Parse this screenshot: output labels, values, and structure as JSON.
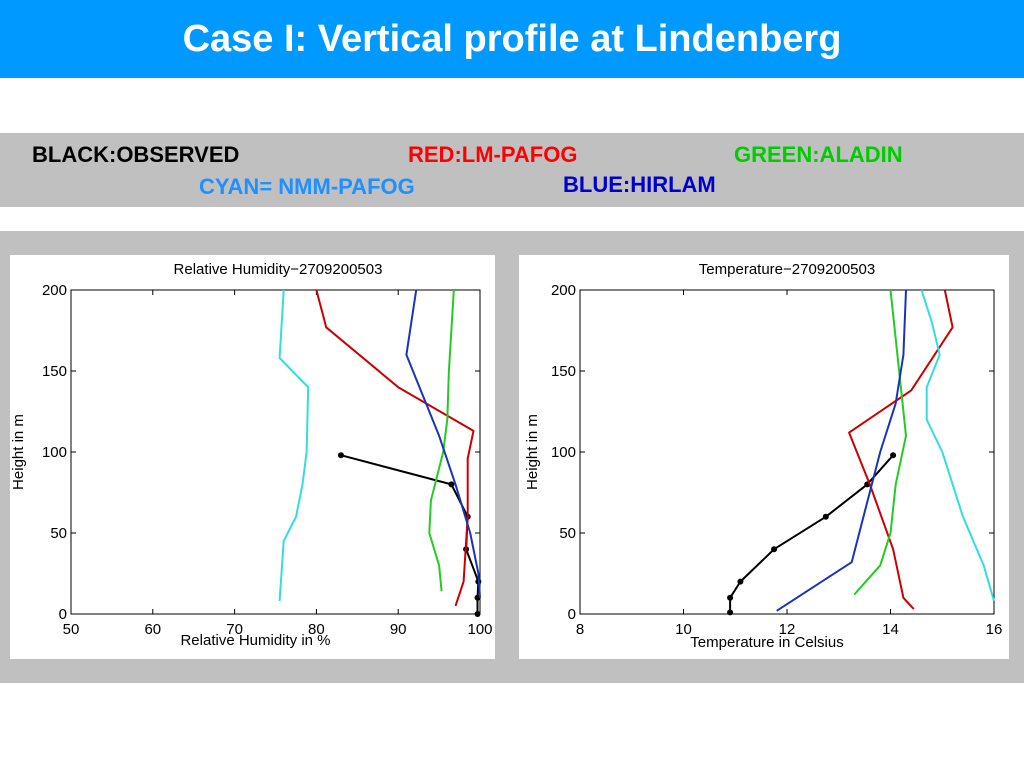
{
  "slide": {
    "title": "Case I: Vertical profile at Lindenberg"
  },
  "legend": [
    {
      "label": "BLACK:OBSERVED",
      "color": "#000000"
    },
    {
      "label": "RED:LM-PAFOG",
      "color": "#ff0000"
    },
    {
      "label": "GREEN:ALADIN",
      "color": "#00cc00"
    },
    {
      "label": "CYAN= NMM-PAFOG",
      "color": "#1e90ff"
    },
    {
      "label": "BLUE:HIRLAM",
      "color": "#0000cc"
    }
  ],
  "chart_data": [
    {
      "type": "line",
      "title": "Relative Humidity−2709200503",
      "xlabel": "Relative Humidity in %",
      "ylabel": "Height in m",
      "xlim": [
        50,
        100
      ],
      "ylim": [
        0,
        200
      ],
      "xticks": [
        50,
        60,
        70,
        80,
        90,
        100
      ],
      "yticks": [
        0,
        50,
        100,
        150,
        200
      ],
      "grid": false,
      "series": [
        {
          "color": "#000000",
          "markers": true,
          "points": [
            [
              83.0,
              98
            ],
            [
              96.5,
              80
            ],
            [
              98.5,
              60
            ],
            [
              98.3,
              40
            ],
            [
              99.8,
              20
            ],
            [
              99.7,
              10
            ],
            [
              99.7,
              0
            ]
          ]
        },
        {
          "color": "#cc0000",
          "markers": false,
          "points": [
            [
              80.0,
              200
            ],
            [
              81.2,
              177
            ],
            [
              90.0,
              140
            ],
            [
              99.2,
              113
            ],
            [
              98.5,
              96
            ],
            [
              98.5,
              60
            ],
            [
              98.0,
              20
            ],
            [
              97.0,
              5
            ]
          ]
        },
        {
          "color": "#22cc22",
          "markers": false,
          "points": [
            [
              96.8,
              200
            ],
            [
              96.2,
              150
            ],
            [
              96.0,
              120
            ],
            [
              95.5,
              100
            ],
            [
              94.0,
              70
            ],
            [
              93.8,
              50
            ],
            [
              95.0,
              30
            ],
            [
              95.3,
              14
            ]
          ]
        },
        {
          "color": "#33dddd",
          "markers": false,
          "points": [
            [
              76.0,
              200
            ],
            [
              75.5,
              158
            ],
            [
              79.0,
              140
            ],
            [
              78.8,
              100
            ],
            [
              78.3,
              80
            ],
            [
              77.5,
              60
            ],
            [
              76.0,
              45
            ],
            [
              75.5,
              8
            ]
          ]
        },
        {
          "color": "#1a33bb",
          "markers": false,
          "points": [
            [
              92.2,
              200
            ],
            [
              91.0,
              160
            ],
            [
              95.0,
              110
            ],
            [
              97.0,
              80
            ],
            [
              98.8,
              50
            ],
            [
              99.8,
              25
            ],
            [
              100.0,
              10
            ]
          ]
        }
      ]
    },
    {
      "type": "line",
      "title": "Temperature−2709200503",
      "xlabel": "Temperature in Celsius",
      "ylabel": "Height in m",
      "xlim": [
        8,
        16
      ],
      "ylim": [
        0,
        200
      ],
      "xticks": [
        8,
        10,
        12,
        14,
        16
      ],
      "yticks": [
        0,
        50,
        100,
        150,
        200
      ],
      "grid": false,
      "series": [
        {
          "color": "#000000",
          "markers": true,
          "points": [
            [
              14.05,
              98
            ],
            [
              13.55,
              80
            ],
            [
              12.75,
              60
            ],
            [
              11.75,
              40
            ],
            [
              11.1,
              20
            ],
            [
              10.9,
              10
            ],
            [
              10.9,
              1
            ]
          ]
        },
        {
          "color": "#cc0000",
          "markers": false,
          "points": [
            [
              15.05,
              200
            ],
            [
              15.2,
              177
            ],
            [
              14.4,
              138
            ],
            [
              13.2,
              112
            ],
            [
              13.6,
              80
            ],
            [
              14.05,
              40
            ],
            [
              14.25,
              10
            ],
            [
              14.45,
              3
            ]
          ]
        },
        {
          "color": "#22cc22",
          "markers": false,
          "points": [
            [
              14.0,
              200
            ],
            [
              14.1,
              170
            ],
            [
              14.3,
              110
            ],
            [
              14.1,
              80
            ],
            [
              14.0,
              50
            ],
            [
              13.8,
              30
            ],
            [
              13.3,
              12
            ]
          ]
        },
        {
          "color": "#33dddd",
          "markers": false,
          "points": [
            [
              14.6,
              200
            ],
            [
              14.8,
              180
            ],
            [
              14.95,
              160
            ],
            [
              14.7,
              140
            ],
            [
              14.7,
              120
            ],
            [
              15.0,
              100
            ],
            [
              15.4,
              60
            ],
            [
              15.8,
              30
            ],
            [
              16.0,
              8
            ]
          ]
        },
        {
          "color": "#1a33bb",
          "markers": false,
          "points": [
            [
              14.3,
              200
            ],
            [
              14.25,
              160
            ],
            [
              14.1,
              130
            ],
            [
              13.8,
              100
            ],
            [
              13.25,
              32
            ],
            [
              11.8,
              2
            ]
          ]
        }
      ]
    }
  ]
}
